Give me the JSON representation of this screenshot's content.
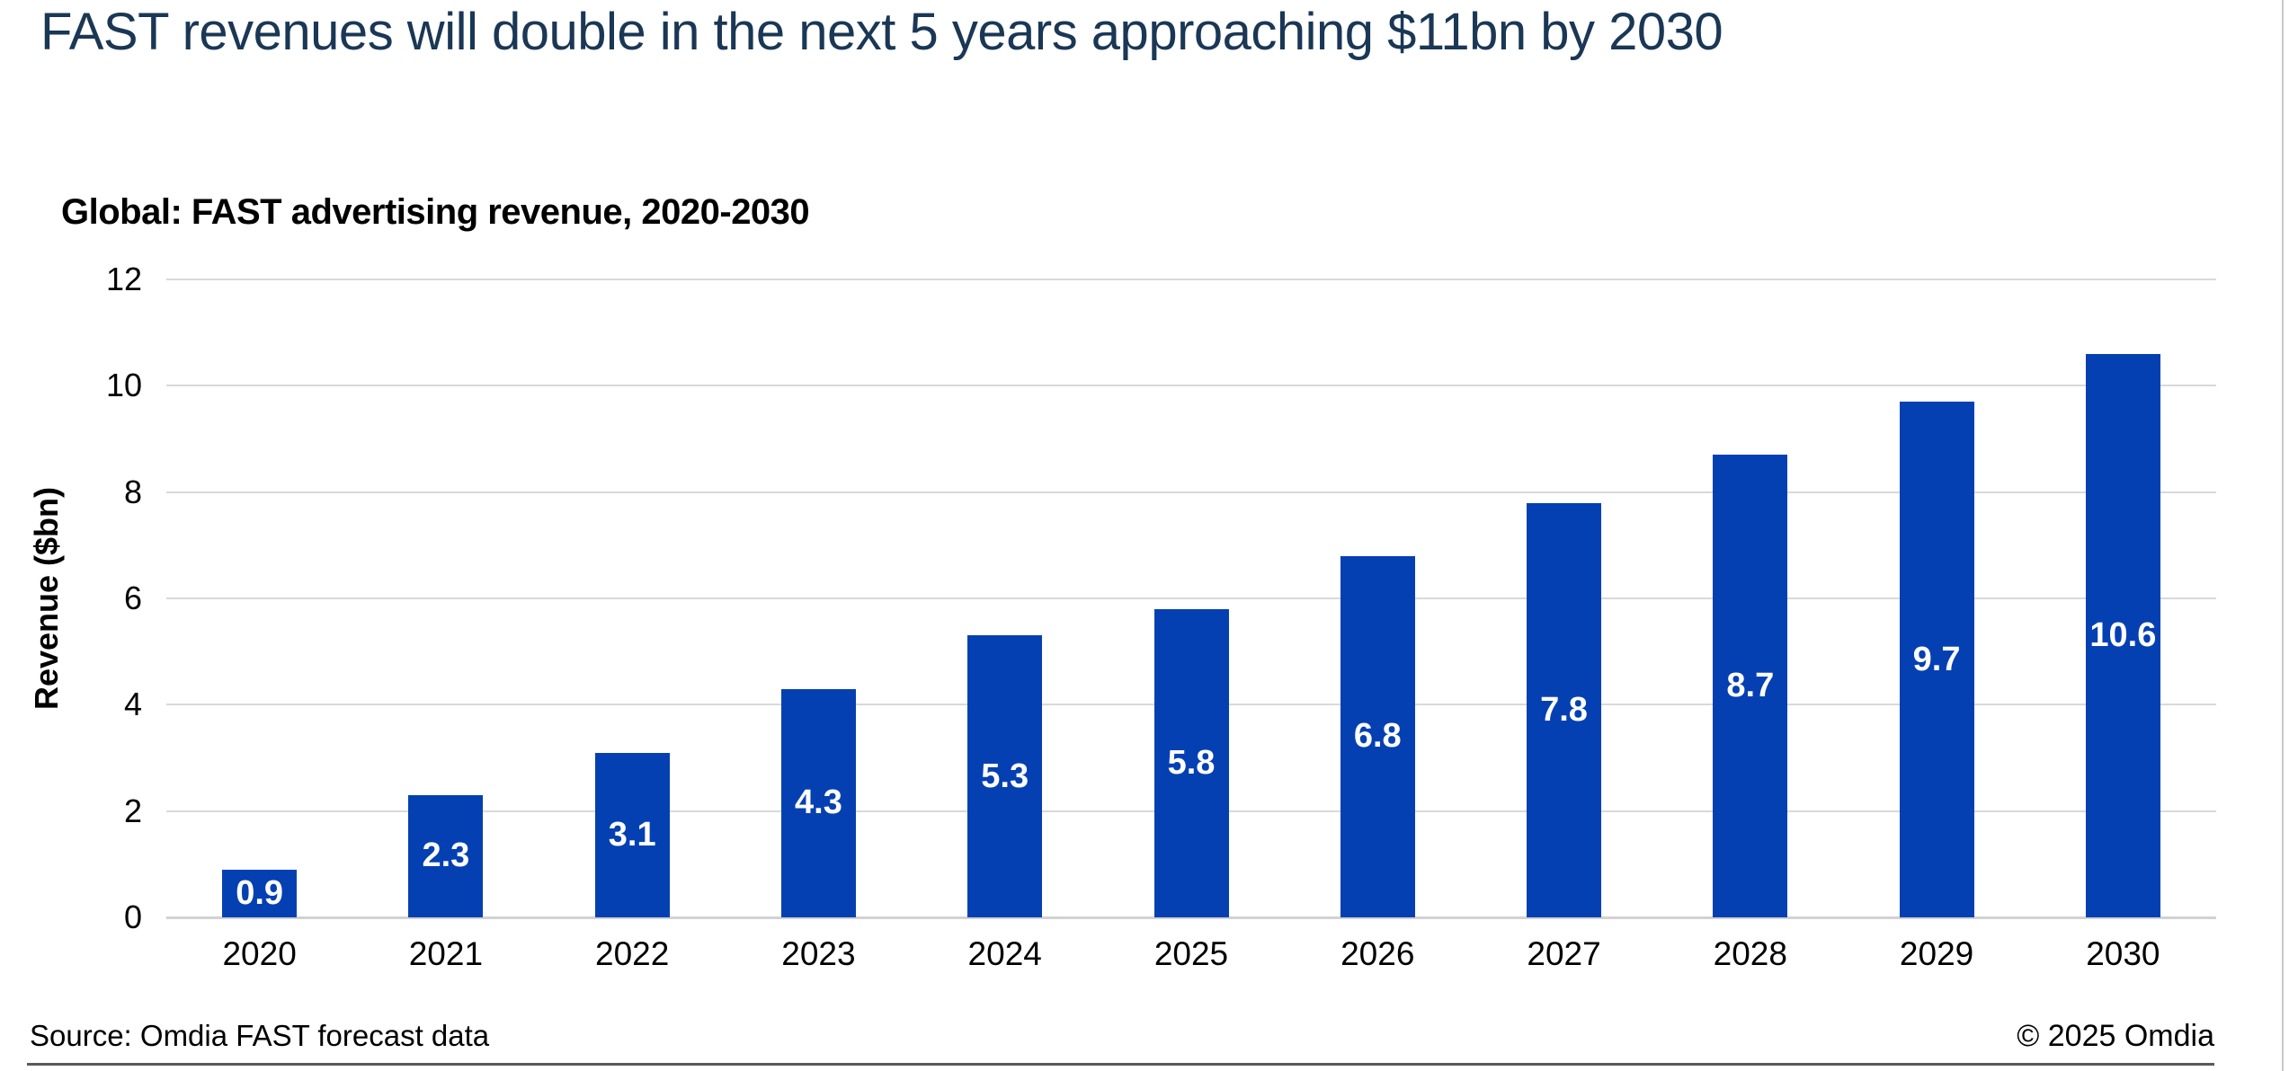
{
  "header": {
    "title": "FAST revenues will double in the next 5 years approaching $11bn by 2030"
  },
  "colors": {
    "bar_blue": "#0540B3",
    "title_navy": "#1A3755",
    "gridline_gray": "#D9D9D9",
    "footer_rule_gray": "#595959",
    "bar_label_white": "#FFFFFF"
  },
  "chart_data": {
    "type": "bar",
    "title": "Global: FAST advertising revenue, 2020-2030",
    "categories": [
      "2020",
      "2021",
      "2022",
      "2023",
      "2024",
      "2025",
      "2026",
      "2027",
      "2028",
      "2029",
      "2030"
    ],
    "values": [
      0.9,
      2.3,
      3.1,
      4.3,
      5.3,
      5.8,
      6.8,
      7.8,
      8.7,
      9.7,
      10.6
    ],
    "value_labels": [
      "0.9",
      "2.3",
      "3.1",
      "4.3",
      "5.3",
      "5.8",
      "6.8",
      "7.8",
      "8.7",
      "9.7",
      "10.6"
    ],
    "xlabel": "",
    "ylabel": "Revenue ($bn)",
    "ylim": [
      0,
      12
    ],
    "yticks": [
      0,
      2,
      4,
      6,
      8,
      10,
      12
    ],
    "grid": "horizontal",
    "legend": "none",
    "bar_label_position": "center-inside"
  },
  "footer": {
    "source": "Source: Omdia FAST forecast data",
    "copyright": "© 2025 Omdia"
  }
}
